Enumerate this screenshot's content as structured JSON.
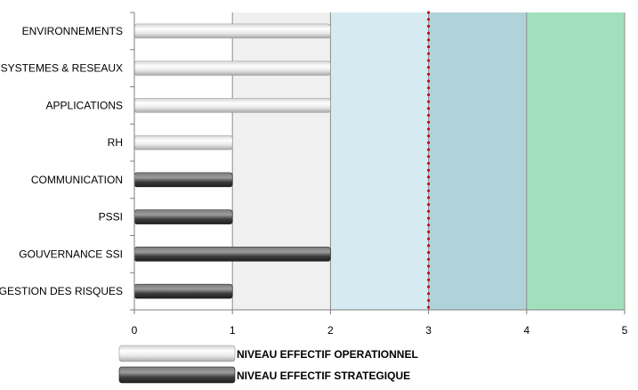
{
  "chart_data": {
    "type": "bar",
    "orientation": "horizontal",
    "title": "",
    "xlabel": "",
    "ylabel": "",
    "xlim": [
      0,
      5
    ],
    "x_ticks": [
      "0",
      "1",
      "2",
      "3",
      "4",
      "5"
    ],
    "grid": "vertical",
    "categories": [
      "ENVIRONNEMENTS",
      "SYSTEMES & RESEAUX",
      "APPLICATIONS",
      "RH",
      "COMMUNICATION",
      "PSSI",
      "GOUVERNANCE SSI",
      "GESTION DES RISQUES"
    ],
    "series": [
      {
        "name": "NIVEAU EFFECTIF OPERATIONNEL",
        "color": "#e6e6e6",
        "values": [
          2,
          2,
          2,
          1,
          null,
          null,
          null,
          null
        ]
      },
      {
        "name": "NIVEAU EFFECTIF STRATEGIQUE",
        "color": "#4a4a4a",
        "values": [
          null,
          null,
          null,
          null,
          1,
          1,
          2,
          1
        ]
      }
    ],
    "background_bands": [
      {
        "from": 0,
        "to": 1,
        "color": "#ffffff"
      },
      {
        "from": 1,
        "to": 2,
        "color": "#f0f0f0"
      },
      {
        "from": 2,
        "to": 3,
        "color": "#d5ebf1"
      },
      {
        "from": 3,
        "to": 4,
        "color": "#b0d3da"
      },
      {
        "from": 4,
        "to": 5,
        "color": "#a2e0bd"
      }
    ],
    "reference_line": {
      "value": 3,
      "color": "#c00000",
      "style": "dotted"
    },
    "legend": {
      "position": "bottom-left"
    }
  }
}
